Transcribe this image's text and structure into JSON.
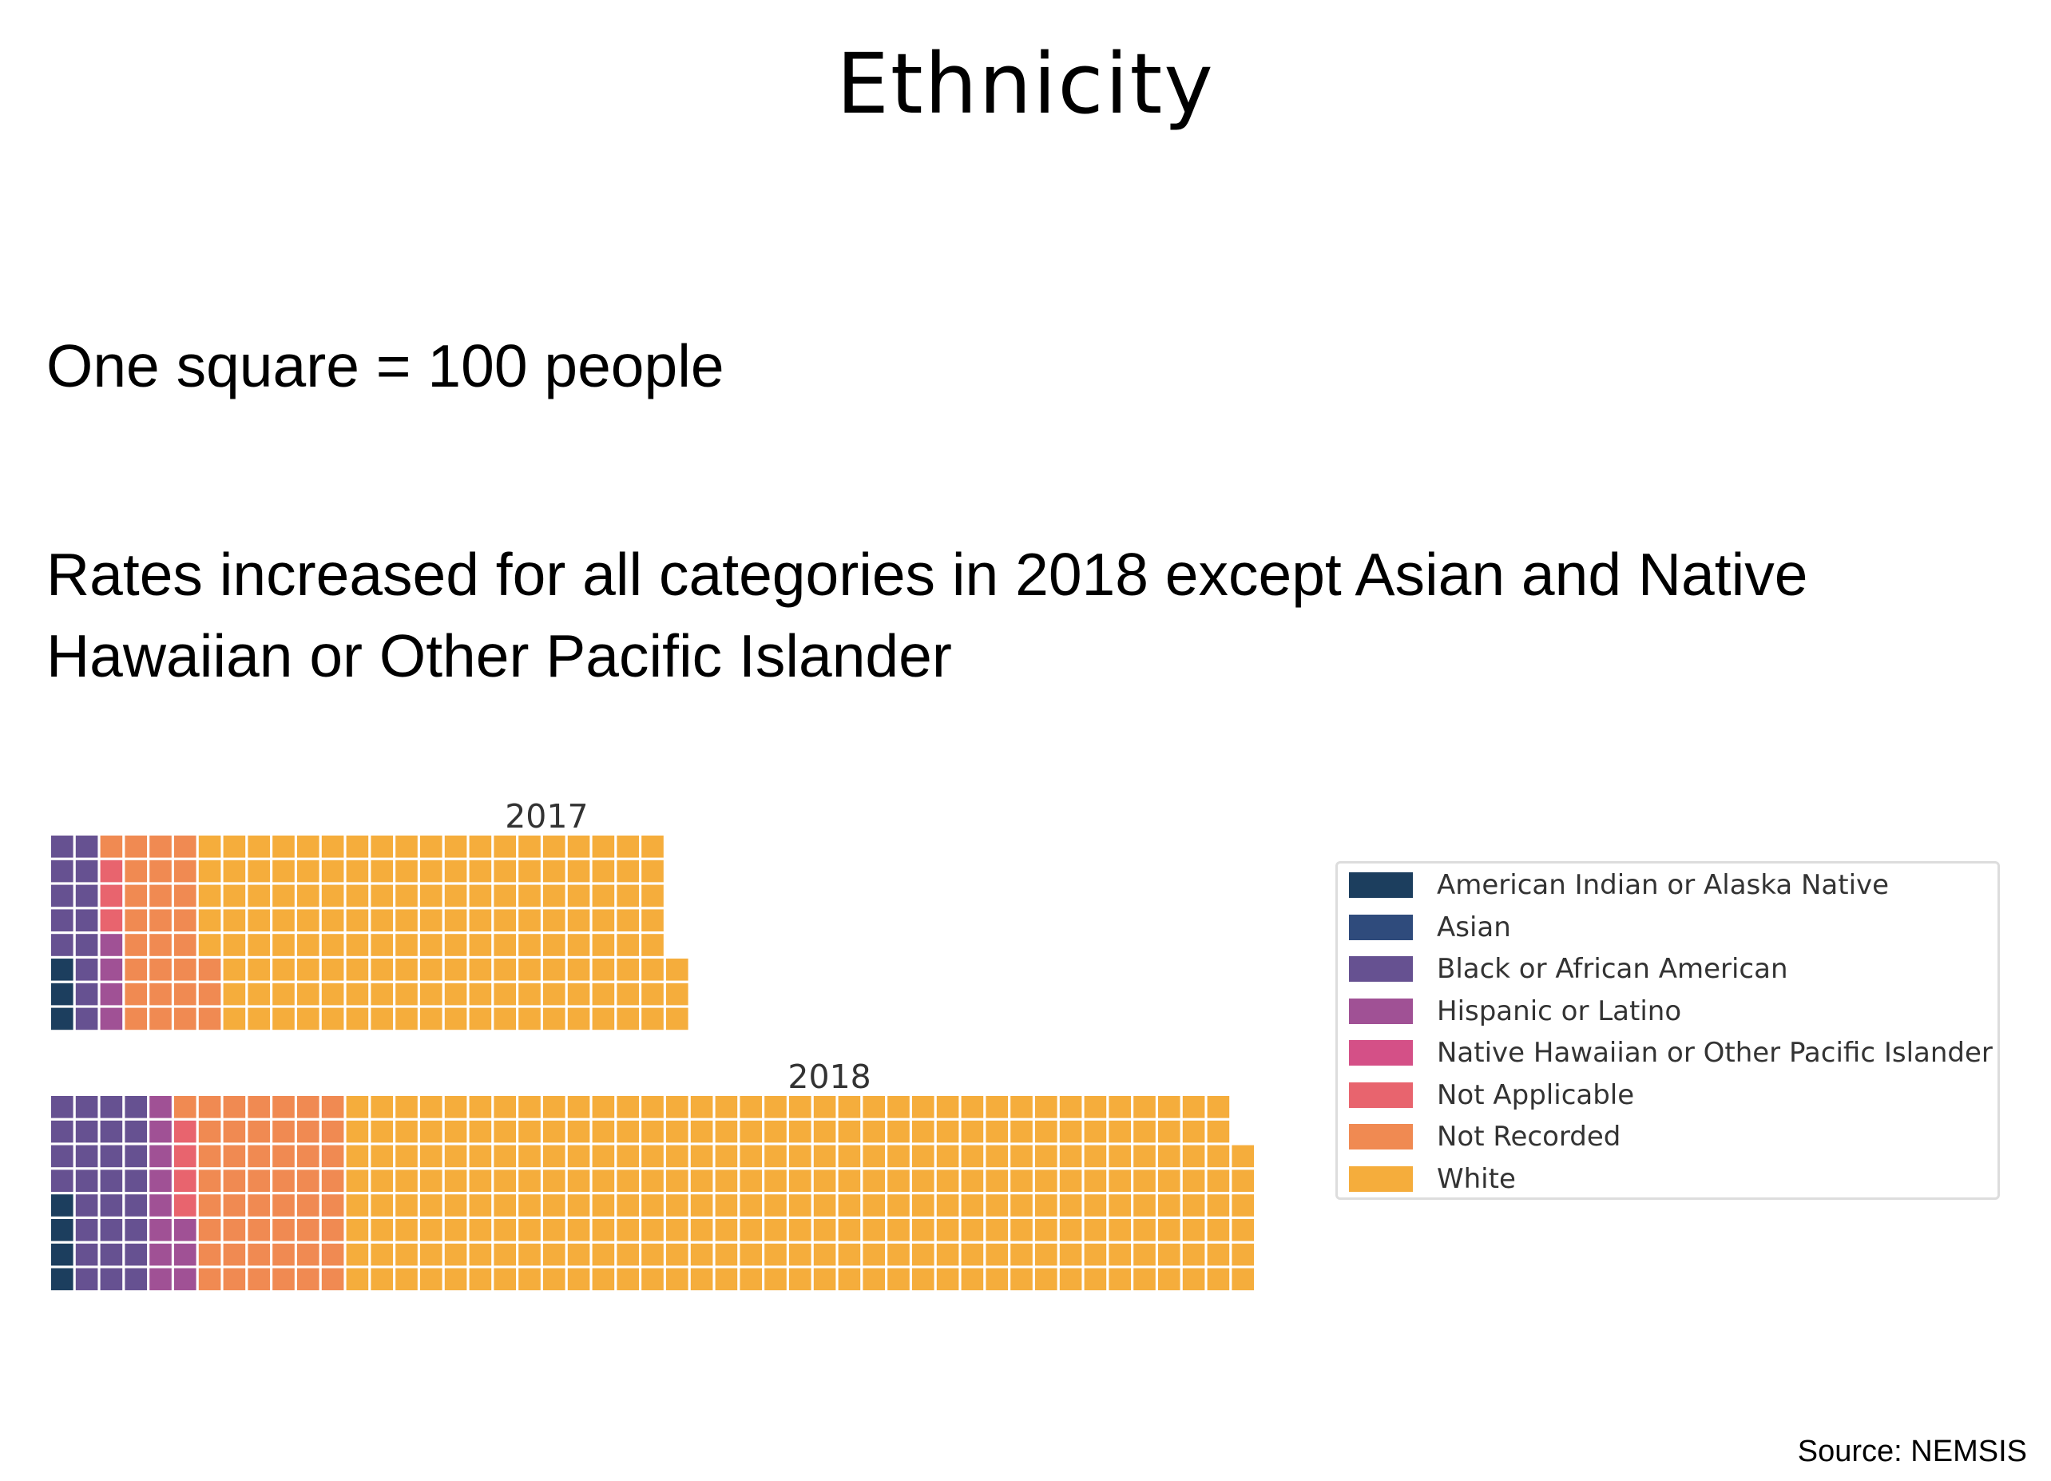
{
  "page": {
    "title": "Ethnicity",
    "subtitle1": "One square = 100 people",
    "subtitle2": "Rates increased for all categories in 2018 except Asian and Native Hawaiian or Other Pacific Islander",
    "source": "Source: NEMSIS"
  },
  "chart_data": {
    "type": "waffle",
    "unit": "One square = 100 people",
    "rows_per_column": 8,
    "categories": [
      "American Indian or Alaska Native",
      "Asian",
      "Black or African American",
      "Hispanic or Latino",
      "Native Hawaiian or Other Pacific Islander",
      "Not Applicable",
      "Not Recorded",
      "White"
    ],
    "colors": [
      "#1c3e5e",
      "#2f4b7c",
      "#665191",
      "#a05195",
      "#d45087",
      "#e8646e",
      "#f08a52",
      "#f5ad3c"
    ],
    "series": [
      {
        "name": "2017",
        "values": [
          3,
          0,
          13,
          4,
          0,
          3,
          28,
          152
        ]
      },
      {
        "name": "2018",
        "values": [
          4,
          0,
          28,
          11,
          0,
          4,
          49,
          294
        ]
      }
    ],
    "legend_position": "right",
    "grid": false
  }
}
